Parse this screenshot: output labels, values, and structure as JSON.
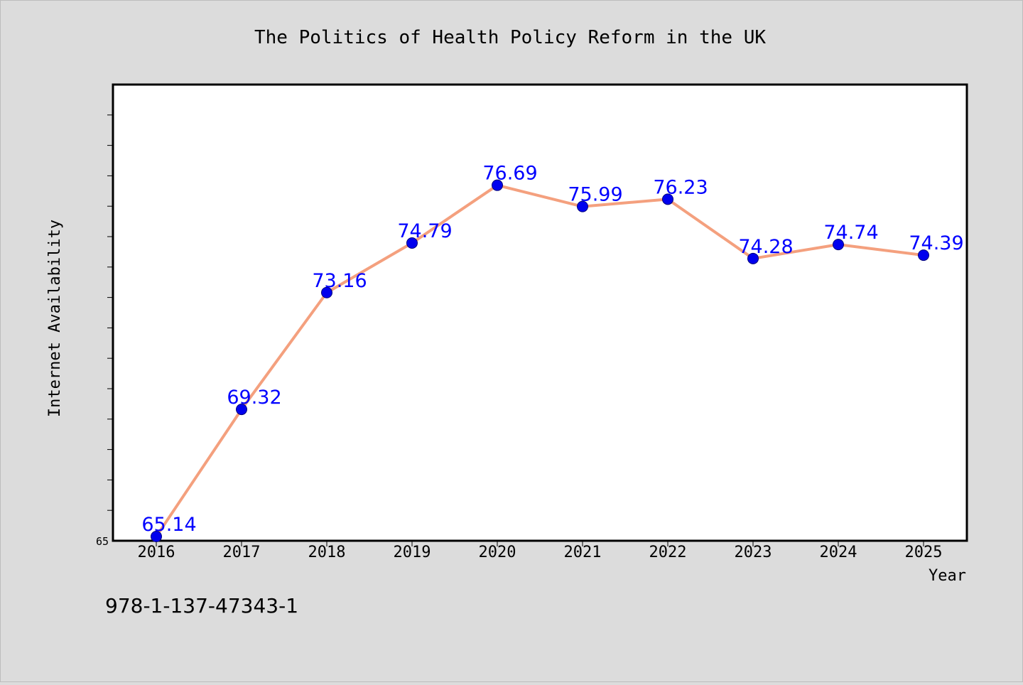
{
  "page": {
    "isbn": "978-1-137-47343-1"
  },
  "chart_data": {
    "type": "line",
    "title": "The Politics of Health Policy Reform in the UK",
    "xlabel": "Year",
    "ylabel": "Internet Availability",
    "x": [
      "2016",
      "2017",
      "2018",
      "2019",
      "2020",
      "2021",
      "2022",
      "2023",
      "2024",
      "2025"
    ],
    "series": [
      {
        "values": [
          65.14,
          69.32,
          73.16,
          74.79,
          76.69,
          75.99,
          76.23,
          74.28,
          74.74,
          74.39
        ],
        "value_labels": [
          "65.14",
          "69.32",
          "73.16",
          "74.79",
          "76.69",
          "75.99",
          "76.23",
          "74.28",
          "74.74",
          "74.39"
        ],
        "line_color": "#f4a07e",
        "marker_color": "#0000ee",
        "label_color": "#0000ff"
      }
    ],
    "ylim": [
      65,
      80
    ],
    "y_tick_labels": [
      "65"
    ],
    "grid": false,
    "colors": {
      "page_background": "#dcdcdc",
      "plot_background": "#ffffff",
      "frame": "#000000"
    }
  }
}
